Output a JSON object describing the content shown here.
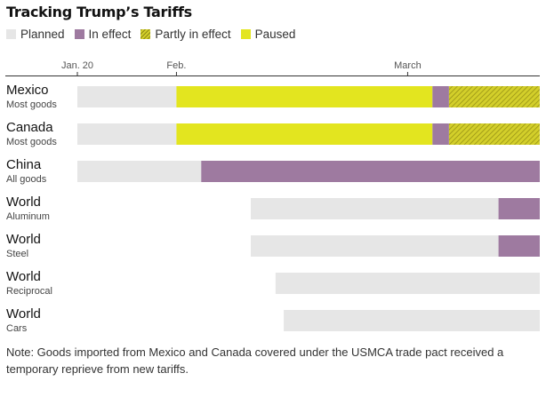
{
  "title": "Tracking Trump’s Tariffs",
  "legend": [
    {
      "key": "planned",
      "label": "Planned",
      "color": "#e6e6e6"
    },
    {
      "key": "in_effect",
      "label": "In effect",
      "color": "#9e7aa0"
    },
    {
      "key": "partly",
      "label": "Partly in effect",
      "color": "#d3cf2a"
    },
    {
      "key": "paused",
      "label": "Paused",
      "color": "#e3e51f"
    }
  ],
  "note": "Note: Goods imported from Mexico and Canada covered under the USMCA trade pact received a temporary reprieve from new tariffs.",
  "chart_data": {
    "type": "bar",
    "orientation": "horizontal-timeline",
    "x_ticks": [
      "Jan. 20",
      "Feb.",
      "March"
    ],
    "x_tick_dates": [
      "2025-01-20",
      "2025-02-01",
      "2025-03-01"
    ],
    "x_range": [
      "2025-01-20",
      "2025-03-17"
    ],
    "categories": [
      {
        "name": "Mexico",
        "sub": "Most goods"
      },
      {
        "name": "Canada",
        "sub": "Most goods"
      },
      {
        "name": "China",
        "sub": "All goods"
      },
      {
        "name": "World",
        "sub": "Aluminum"
      },
      {
        "name": "World",
        "sub": "Steel"
      },
      {
        "name": "World",
        "sub": "Reciprocal"
      },
      {
        "name": "World",
        "sub": "Cars"
      }
    ],
    "segments": [
      [
        {
          "status": "planned",
          "start": "2025-01-20",
          "end": "2025-02-01"
        },
        {
          "status": "paused",
          "start": "2025-02-01",
          "end": "2025-03-04"
        },
        {
          "status": "in_effect",
          "start": "2025-03-04",
          "end": "2025-03-06"
        },
        {
          "status": "partly",
          "start": "2025-03-06",
          "end": "2025-03-17"
        }
      ],
      [
        {
          "status": "planned",
          "start": "2025-01-20",
          "end": "2025-02-01"
        },
        {
          "status": "paused",
          "start": "2025-02-01",
          "end": "2025-03-04"
        },
        {
          "status": "in_effect",
          "start": "2025-03-04",
          "end": "2025-03-06"
        },
        {
          "status": "partly",
          "start": "2025-03-06",
          "end": "2025-03-17"
        }
      ],
      [
        {
          "status": "planned",
          "start": "2025-01-20",
          "end": "2025-02-04"
        },
        {
          "status": "in_effect",
          "start": "2025-02-04",
          "end": "2025-03-17"
        }
      ],
      [
        {
          "status": "planned",
          "start": "2025-02-10",
          "end": "2025-03-12"
        },
        {
          "status": "in_effect",
          "start": "2025-03-12",
          "end": "2025-03-17"
        }
      ],
      [
        {
          "status": "planned",
          "start": "2025-02-10",
          "end": "2025-03-12"
        },
        {
          "status": "in_effect",
          "start": "2025-03-12",
          "end": "2025-03-17"
        }
      ],
      [
        {
          "status": "planned",
          "start": "2025-02-13",
          "end": "2025-03-17"
        }
      ],
      [
        {
          "status": "planned",
          "start": "2025-02-14",
          "end": "2025-03-17"
        }
      ]
    ],
    "grid": false,
    "legend_position": "top-left"
  }
}
